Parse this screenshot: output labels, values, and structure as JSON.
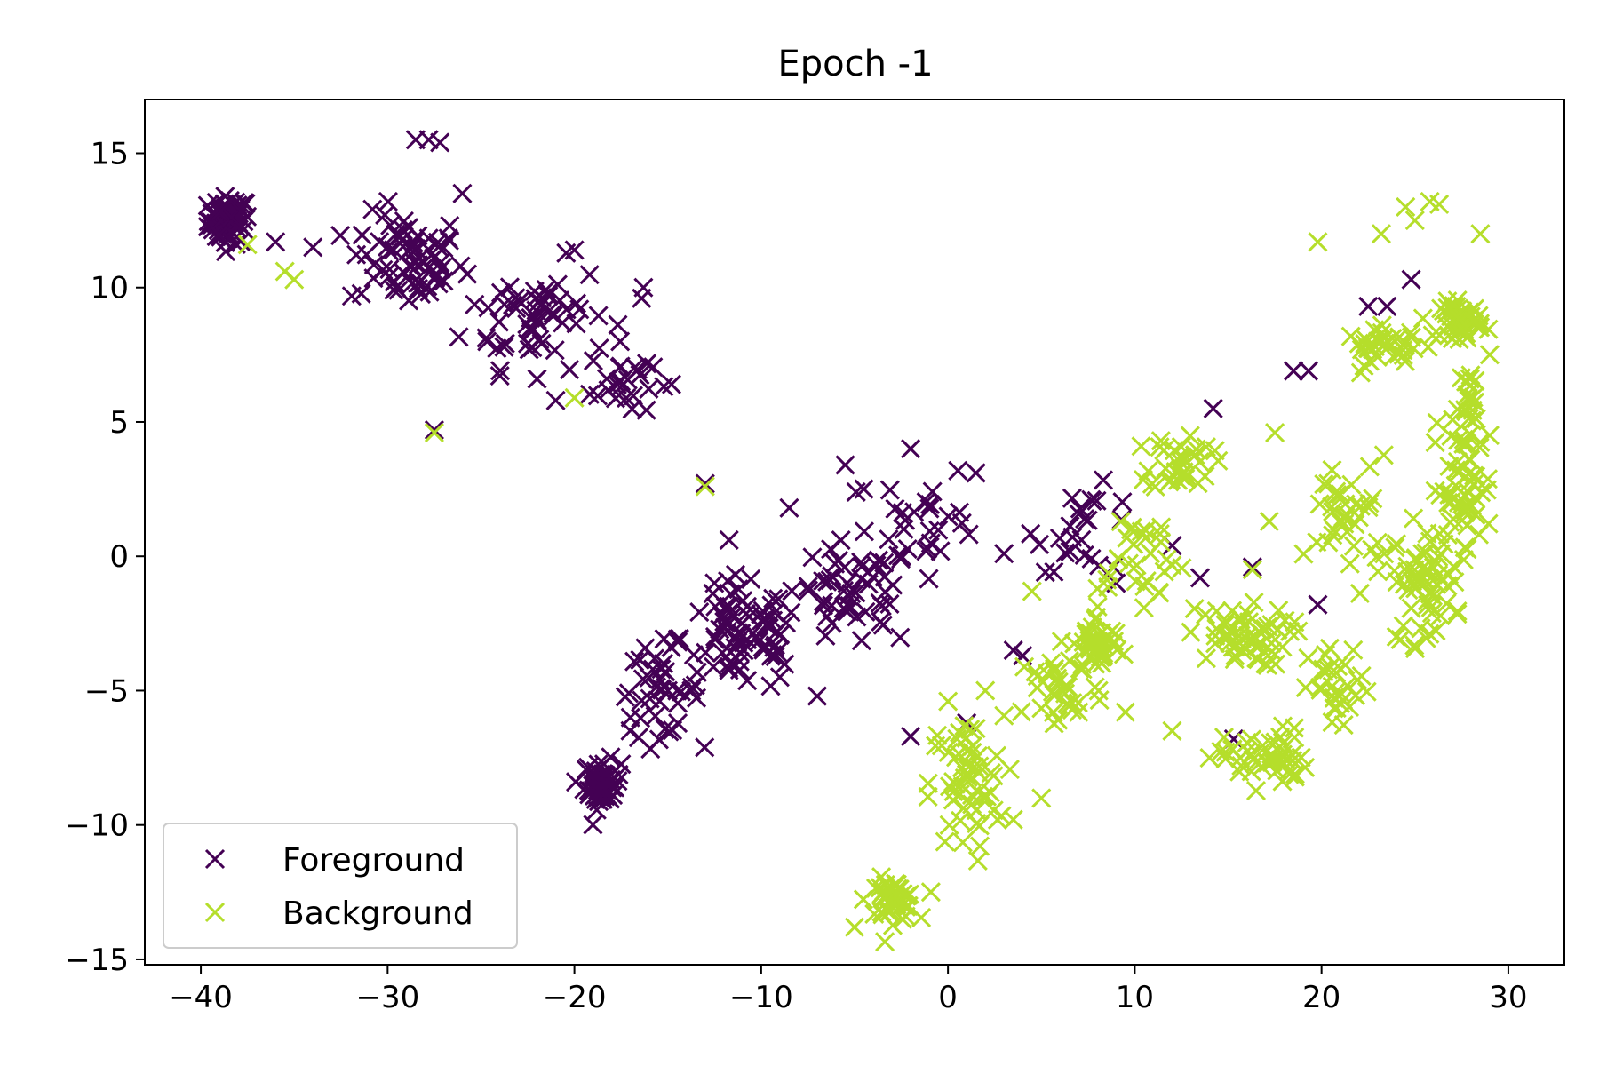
{
  "chart_data": {
    "type": "scatter",
    "title": "Epoch -1",
    "xlabel": "",
    "ylabel": "",
    "xlim": [
      -43,
      33
    ],
    "ylim": [
      -15.2,
      17
    ],
    "xticks": [
      -40,
      -30,
      -20,
      -10,
      0,
      10,
      20,
      30
    ],
    "yticks": [
      -15,
      -10,
      -5,
      0,
      5,
      10,
      15
    ],
    "xtick_labels": [
      "−40",
      "−30",
      "−20",
      "−10",
      "0",
      "10",
      "20",
      "30"
    ],
    "ytick_labels": [
      "−15",
      "−10",
      "−5",
      "0",
      "5",
      "10",
      "15"
    ],
    "grid": false,
    "legend_position": "lower-left",
    "marker": "x",
    "series": [
      {
        "name": "Foreground",
        "color": "#440154",
        "clusters": [
          {
            "center": [
              -38.5,
              12.5
            ],
            "spread": [
              1.0,
              0.8
            ],
            "count": 70
          },
          {
            "center": [
              -29.0,
              11.0
            ],
            "spread": [
              2.8,
              1.6
            ],
            "count": 70
          },
          {
            "center": [
              -22.0,
              9.0
            ],
            "spread": [
              3.5,
              1.8
            ],
            "count": 60
          },
          {
            "center": [
              -17.5,
              6.5
            ],
            "spread": [
              1.5,
              1.2
            ],
            "count": 25
          },
          {
            "center": [
              -18.5,
              -8.5
            ],
            "spread": [
              0.9,
              0.8
            ],
            "count": 55
          },
          {
            "center": [
              -15.5,
              -5.0
            ],
            "spread": [
              2.0,
              1.5
            ],
            "count": 40
          },
          {
            "center": [
              -11.0,
              -3.0
            ],
            "spread": [
              3.0,
              2.0
            ],
            "count": 80
          },
          {
            "center": [
              -5.0,
              -1.5
            ],
            "spread": [
              3.0,
              1.8
            ],
            "count": 55
          },
          {
            "center": [
              -1.0,
              1.5
            ],
            "spread": [
              2.5,
              1.6
            ],
            "count": 25
          },
          {
            "center": [
              7.5,
              1.0
            ],
            "spread": [
              2.5,
              1.4
            ],
            "count": 25
          }
        ],
        "points": [
          [
            -28.5,
            15.5
          ],
          [
            -27.8,
            15.5
          ],
          [
            -27.2,
            15.4
          ],
          [
            -26.0,
            13.5
          ],
          [
            -16.3,
            10.0
          ],
          [
            -16.4,
            9.6
          ],
          [
            -27.5,
            4.7
          ],
          [
            -36,
            11.7
          ],
          [
            -34,
            11.5
          ],
          [
            -22,
            6.6
          ],
          [
            -21,
            5.8
          ],
          [
            -14.8,
            6.4
          ],
          [
            -13,
            2.7
          ],
          [
            -8.5,
            1.8
          ],
          [
            -5.5,
            3.4
          ],
          [
            -4.5,
            2.5
          ],
          [
            -2,
            4.0
          ],
          [
            1.5,
            3.1
          ],
          [
            3,
            0.1
          ],
          [
            3.5,
            -3.5
          ],
          [
            4,
            -3.7
          ],
          [
            -7,
            -5.2
          ],
          [
            -2,
            -6.7
          ],
          [
            1,
            -6.2
          ],
          [
            12,
            0.4
          ],
          [
            13.5,
            -0.8
          ],
          [
            14.2,
            5.5
          ],
          [
            16.3,
            -0.4
          ],
          [
            15.3,
            -6.8
          ],
          [
            18.5,
            6.9
          ],
          [
            19.3,
            6.9
          ],
          [
            19.8,
            -1.8
          ],
          [
            22.5,
            9.3
          ],
          [
            23.5,
            9.3
          ],
          [
            24.8,
            10.3
          ],
          [
            9,
            -1.0
          ],
          [
            -12.5,
            -1.0
          ],
          [
            -9,
            -4.5
          ],
          [
            -17,
            -6.0
          ],
          [
            -20,
            11.4
          ]
        ]
      },
      {
        "name": "Background",
        "color": "#b5de2b",
        "clusters": [
          {
            "center": [
              -3.0,
              -12.8
            ],
            "spread": [
              1.2,
              0.7
            ],
            "count": 45
          },
          {
            "center": [
              1.0,
              -8.5
            ],
            "spread": [
              1.8,
              2.3
            ],
            "count": 60
          },
          {
            "center": [
              6.0,
              -5.0
            ],
            "spread": [
              2.2,
              1.5
            ],
            "count": 30
          },
          {
            "center": [
              8.0,
              -3.3
            ],
            "spread": [
              1.2,
              1.0
            ],
            "count": 45
          },
          {
            "center": [
              12.5,
              3.5
            ],
            "spread": [
              1.5,
              1.0
            ],
            "count": 35
          },
          {
            "center": [
              10.0,
              0.0
            ],
            "spread": [
              2.5,
              1.8
            ],
            "count": 30
          },
          {
            "center": [
              15.5,
              -3.0
            ],
            "spread": [
              2.5,
              1.0
            ],
            "count": 55
          },
          {
            "center": [
              17.0,
              -7.5
            ],
            "spread": [
              2.0,
              1.0
            ],
            "count": 50
          },
          {
            "center": [
              21.0,
              -5.0
            ],
            "spread": [
              1.5,
              1.5
            ],
            "count": 30
          },
          {
            "center": [
              21.5,
              1.5
            ],
            "spread": [
              2.0,
              2.0
            ],
            "count": 40
          },
          {
            "center": [
              25.5,
              -1.0
            ],
            "spread": [
              1.5,
              2.0
            ],
            "count": 60
          },
          {
            "center": [
              27.5,
              2.5
            ],
            "spread": [
              1.5,
              2.0
            ],
            "count": 50
          },
          {
            "center": [
              28.0,
              5.5
            ],
            "spread": [
              0.8,
              1.5
            ],
            "count": 25
          },
          {
            "center": [
              27.5,
              8.8
            ],
            "spread": [
              1.0,
              0.6
            ],
            "count": 50
          },
          {
            "center": [
              23.5,
              7.8
            ],
            "spread": [
              2.0,
              0.6
            ],
            "count": 35
          }
        ],
        "points": [
          [
            -37.5,
            11.6
          ],
          [
            -35.5,
            10.6
          ],
          [
            -35,
            10.3
          ],
          [
            -27.5,
            4.6
          ],
          [
            -20,
            5.9
          ],
          [
            -13,
            2.6
          ],
          [
            19.8,
            11.7
          ],
          [
            23.2,
            12.0
          ],
          [
            24.5,
            13.0
          ],
          [
            25.8,
            13.2
          ],
          [
            26.3,
            13.1
          ],
          [
            28.5,
            12.0
          ],
          [
            25,
            12.5
          ],
          [
            -5,
            -13.8
          ],
          [
            0,
            -5.4
          ],
          [
            2,
            -5.0
          ],
          [
            4.5,
            -1.3
          ],
          [
            8,
            -1.2
          ],
          [
            17.5,
            4.6
          ],
          [
            17.2,
            1.3
          ],
          [
            12,
            -6.5
          ],
          [
            14,
            -7.5
          ],
          [
            9.5,
            -5.8
          ],
          [
            7,
            -5.8
          ],
          [
            5,
            -9.0
          ],
          [
            3.5,
            -9.8
          ],
          [
            16.3,
            -0.5
          ],
          [
            24,
            -3
          ],
          [
            29,
            7.5
          ],
          [
            29,
            4.5
          ]
        ]
      }
    ]
  }
}
